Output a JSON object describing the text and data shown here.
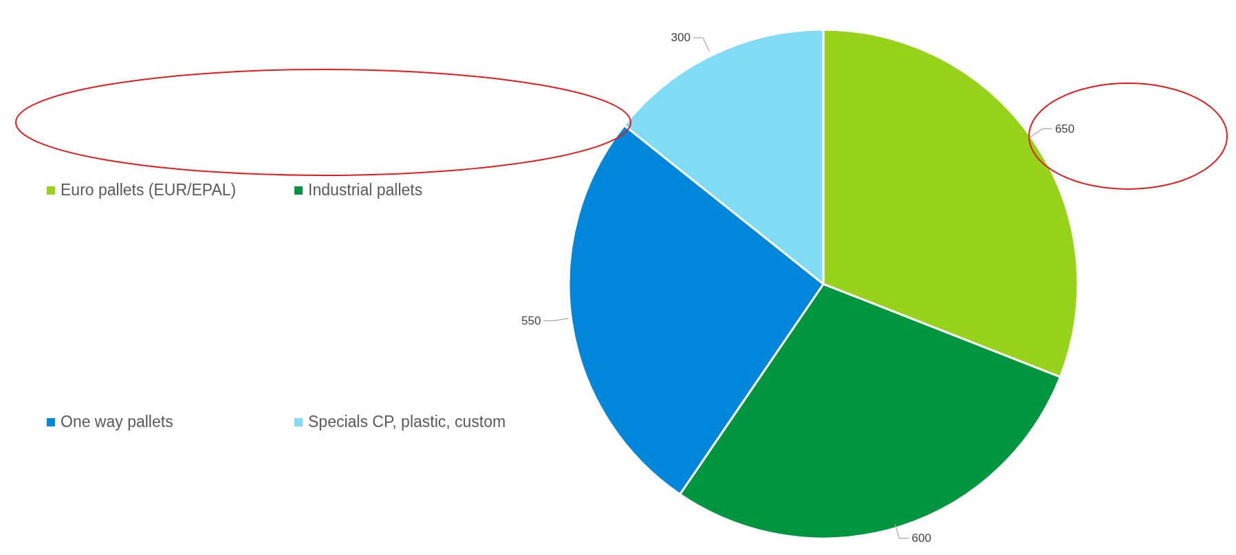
{
  "chart_data": {
    "type": "pie",
    "categories": [
      "Euro pallets (EUR/EPAL)",
      "Industrial pallets",
      "One way pallets",
      "Specials CP, plastic, custom"
    ],
    "values": [
      650,
      600,
      550,
      300
    ],
    "colors": [
      "#97d31a",
      "#00963f",
      "#0086db",
      "#80dbf5"
    ],
    "data_labels": true,
    "legend": "left"
  }
}
